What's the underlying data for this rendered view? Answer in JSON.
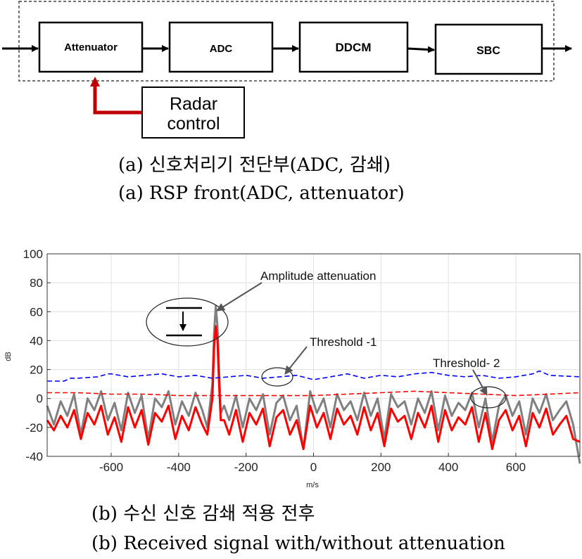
{
  "block_diagram": {
    "blocks": [
      "Attenuator",
      "ADC",
      "DDCM",
      "SBC"
    ],
    "control_line1": "Radar",
    "control_line2": "control"
  },
  "captions": {
    "a_korean": "(a) 신호처리기 전단부(ADC, 감쇄)",
    "a_english": "(a) RSP front(ADC, attenuator)",
    "b_korean": "(b) 수신 신호 감쇄 적용 전후",
    "b_english": "(b) Received signal with/without attenuation"
  },
  "chart_data": {
    "type": "line",
    "xlabel": "m/s",
    "ylabel": "dB",
    "xlim": [
      -790,
      790
    ],
    "ylim": [
      -40,
      100
    ],
    "xticks": [
      -600,
      -400,
      -200,
      0,
      200,
      400,
      600
    ],
    "yticks": [
      -40,
      -20,
      0,
      20,
      40,
      60,
      80,
      100
    ],
    "grid": true,
    "annotations": [
      "Amplitude attenuation",
      "Threshold -1",
      "Threshold- 2"
    ],
    "series": [
      {
        "color": "#808080",
        "style": "solid",
        "x": [
          -790,
          -770,
          -750,
          -730,
          -710,
          -690,
          -670,
          -650,
          -630,
          -610,
          -590,
          -570,
          -550,
          -530,
          -510,
          -490,
          -470,
          -450,
          -430,
          -410,
          -390,
          -370,
          -350,
          -330,
          -315,
          -300,
          -295,
          -290,
          -285,
          -280,
          -275,
          -265,
          -250,
          -230,
          -210,
          -190,
          -170,
          -150,
          -130,
          -110,
          -90,
          -70,
          -50,
          -30,
          -10,
          10,
          30,
          50,
          70,
          90,
          110,
          130,
          150,
          170,
          190,
          210,
          230,
          250,
          270,
          290,
          310,
          330,
          350,
          370,
          390,
          410,
          430,
          450,
          470,
          490,
          510,
          530,
          550,
          570,
          590,
          610,
          630,
          650,
          670,
          690,
          710,
          730,
          750,
          770,
          790
        ],
        "y": [
          -5,
          -18,
          -2,
          -12,
          3,
          -25,
          0,
          -8,
          5,
          -15,
          -3,
          -22,
          4,
          -10,
          2,
          -28,
          0,
          -6,
          5,
          -18,
          -2,
          -12,
          4,
          -8,
          -20,
          10,
          45,
          64,
          50,
          20,
          -10,
          -5,
          -15,
          2,
          -20,
          0,
          -8,
          3,
          -25,
          -3,
          2,
          -15,
          -5,
          -35,
          5,
          -10,
          0,
          -20,
          3,
          -8,
          -2,
          -15,
          4,
          -12,
          0,
          -28,
          3,
          -6,
          -2,
          -18,
          0,
          -10,
          5,
          -22,
          2,
          -12,
          -3,
          -8,
          4,
          -20,
          0,
          -30,
          -5,
          2,
          -12,
          -2,
          -25,
          0,
          -10,
          3,
          -15,
          -8,
          -2,
          -18,
          -45
        ]
      },
      {
        "color": "#ff0000",
        "style": "solid",
        "x": [
          -790,
          -770,
          -750,
          -730,
          -710,
          -690,
          -670,
          -650,
          -630,
          -610,
          -590,
          -570,
          -550,
          -530,
          -510,
          -490,
          -470,
          -450,
          -430,
          -410,
          -390,
          -370,
          -350,
          -330,
          -315,
          -300,
          -295,
          -290,
          -285,
          -280,
          -275,
          -265,
          -250,
          -230,
          -210,
          -190,
          -170,
          -150,
          -130,
          -110,
          -90,
          -70,
          -50,
          -30,
          -10,
          10,
          30,
          50,
          70,
          90,
          110,
          130,
          150,
          170,
          190,
          210,
          230,
          250,
          270,
          290,
          310,
          330,
          350,
          370,
          390,
          410,
          430,
          450,
          470,
          490,
          510,
          530,
          550,
          570,
          590,
          610,
          630,
          650,
          670,
          690,
          710,
          730,
          750,
          770,
          790
        ],
        "y": [
          -15,
          -22,
          -12,
          -20,
          -8,
          -28,
          -10,
          -18,
          -5,
          -25,
          -13,
          -30,
          -6,
          -20,
          -8,
          -32,
          -10,
          -16,
          -5,
          -28,
          -12,
          -22,
          -6,
          -18,
          -25,
          0,
          35,
          50,
          40,
          10,
          -15,
          -15,
          -25,
          -8,
          -30,
          -10,
          -18,
          -7,
          -33,
          -13,
          -8,
          -25,
          -15,
          -35,
          -5,
          -20,
          -10,
          -28,
          -7,
          -18,
          -12,
          -25,
          -6,
          -22,
          -10,
          -33,
          -7,
          -16,
          -12,
          -28,
          -10,
          -20,
          -5,
          -30,
          -8,
          -22,
          -13,
          -18,
          -6,
          -30,
          -10,
          -35,
          -15,
          -8,
          -22,
          -12,
          -33,
          -10,
          -20,
          -7,
          -25,
          -18,
          -12,
          -28,
          -30
        ]
      },
      {
        "color": "#ff0000",
        "style": "dashed",
        "x": [
          -790,
          -700,
          -600,
          -500,
          -400,
          -300,
          -200,
          -100,
          0,
          100,
          200,
          300,
          400,
          500,
          600,
          700,
          790
        ],
        "y": [
          4,
          4,
          3,
          3,
          2,
          2,
          2,
          2,
          2,
          3,
          4,
          5,
          4,
          3,
          2,
          3,
          4
        ]
      },
      {
        "color": "#0000ff",
        "style": "dashed",
        "x": [
          -790,
          -740,
          -720,
          -700,
          -640,
          -610,
          -600,
          -550,
          -500,
          -450,
          -400,
          -350,
          -300,
          -250,
          -200,
          -150,
          -100,
          -50,
          0,
          50,
          100,
          150,
          200,
          250,
          300,
          350,
          400,
          450,
          500,
          550,
          600,
          650,
          670,
          700,
          790
        ],
        "y": [
          12,
          12,
          14,
          14,
          15,
          17,
          17,
          15,
          16,
          17,
          15,
          16,
          14,
          15,
          16,
          14,
          15,
          16,
          13,
          15,
          17,
          14,
          16,
          15,
          17,
          18,
          16,
          15,
          16,
          14,
          15,
          17,
          19,
          16,
          15
        ]
      }
    ]
  }
}
